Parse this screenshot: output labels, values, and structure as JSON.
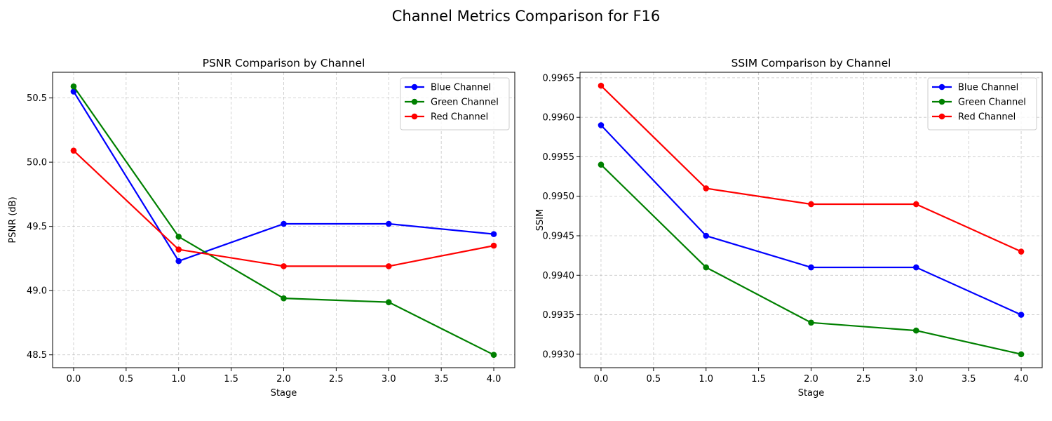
{
  "figure": {
    "suptitle": "Channel Metrics Comparison for F16"
  },
  "chart_data": [
    {
      "type": "line",
      "title": "PSNR Comparison by Channel",
      "xlabel": "Stage",
      "ylabel": "PSNR (dB)",
      "x": [
        0,
        1,
        2,
        3,
        4
      ],
      "xlim": [
        -0.2,
        4.2
      ],
      "ylim": [
        48.4,
        50.7
      ],
      "xticks": [
        0.0,
        0.5,
        1.0,
        1.5,
        2.0,
        2.5,
        3.0,
        3.5,
        4.0
      ],
      "yticks": [
        48.5,
        49.0,
        49.5,
        50.0,
        50.5
      ],
      "xtick_labels": [
        "0.0",
        "0.5",
        "1.0",
        "1.5",
        "2.0",
        "2.5",
        "3.0",
        "3.5",
        "4.0"
      ],
      "ytick_labels": [
        "48.5",
        "49.0",
        "49.5",
        "50.0",
        "50.5"
      ],
      "grid": true,
      "legend_position": "top-right",
      "series": [
        {
          "name": "Blue Channel",
          "color": "#0000ff",
          "values": [
            50.55,
            49.23,
            49.52,
            49.52,
            49.44
          ]
        },
        {
          "name": "Green Channel",
          "color": "#008000",
          "values": [
            50.59,
            49.42,
            48.94,
            48.91,
            48.5
          ]
        },
        {
          "name": "Red Channel",
          "color": "#ff0000",
          "values": [
            50.09,
            49.32,
            49.19,
            49.19,
            49.35
          ]
        }
      ]
    },
    {
      "type": "line",
      "title": "SSIM Comparison by Channel",
      "xlabel": "Stage",
      "ylabel": "SSIM",
      "x": [
        0,
        1,
        2,
        3,
        4
      ],
      "xlim": [
        -0.2,
        4.2
      ],
      "ylim": [
        0.99283,
        0.99657
      ],
      "xticks": [
        0.0,
        0.5,
        1.0,
        1.5,
        2.0,
        2.5,
        3.0,
        3.5,
        4.0
      ],
      "yticks": [
        0.993,
        0.9935,
        0.994,
        0.9945,
        0.995,
        0.9955,
        0.996,
        0.9965
      ],
      "xtick_labels": [
        "0.0",
        "0.5",
        "1.0",
        "1.5",
        "2.0",
        "2.5",
        "3.0",
        "3.5",
        "4.0"
      ],
      "ytick_labels": [
        "0.9930",
        "0.9935",
        "0.9940",
        "0.9945",
        "0.9950",
        "0.9955",
        "0.9960",
        "0.9965"
      ],
      "grid": true,
      "legend_position": "top-right",
      "series": [
        {
          "name": "Blue Channel",
          "color": "#0000ff",
          "values": [
            0.9959,
            0.9945,
            0.9941,
            0.9941,
            0.9935
          ]
        },
        {
          "name": "Green Channel",
          "color": "#008000",
          "values": [
            0.9954,
            0.9941,
            0.9934,
            0.9933,
            0.993
          ]
        },
        {
          "name": "Red Channel",
          "color": "#ff0000",
          "values": [
            0.9964,
            0.9951,
            0.9949,
            0.9949,
            0.9943
          ]
        }
      ]
    }
  ]
}
